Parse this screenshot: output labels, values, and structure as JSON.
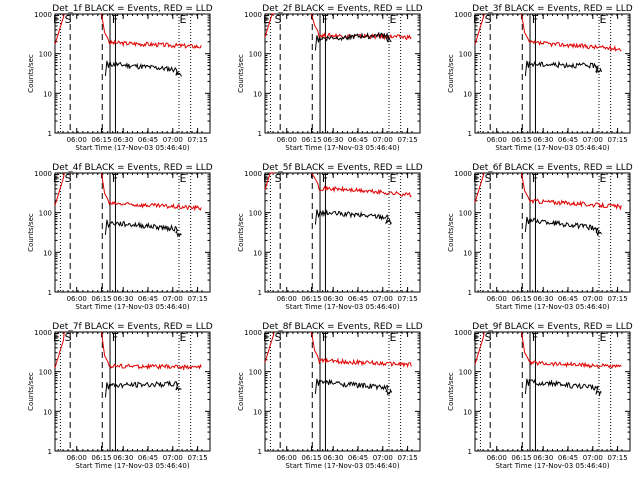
{
  "chart_data": [
    {
      "type": "line",
      "title": "Det_1f BLACK = Events, RED = LLD",
      "xlabel": "Start Time (17-Nov-03 05:46:40)",
      "ylabel": "Counts/sec",
      "x_ticks": [
        "06:00",
        "06:15",
        "06:30",
        "06:45",
        "07:00",
        "07:15"
      ],
      "y_ticks": [
        "1",
        "10",
        "100",
        "1000"
      ],
      "y_scale": "log",
      "ylim": [
        1,
        1000
      ],
      "markers": {
        "E1": "E",
        "S": "S",
        "F": "F",
        "E2": "E"
      },
      "red_level": 190,
      "black_level": 55,
      "red_end": 150,
      "black_end": 30
    },
    {
      "type": "line",
      "title": "Det_2f BLACK = Events, RED = LLD",
      "xlabel": "Start Time (17-Nov-03 05:46:40)",
      "ylabel": "Counts/sec",
      "x_ticks": [
        "06:00",
        "06:15",
        "06:30",
        "06:45",
        "07:00",
        "07:15"
      ],
      "y_ticks": [
        "1",
        "10",
        "100",
        "1000"
      ],
      "y_scale": "log",
      "ylim": [
        1,
        1000
      ],
      "markers": {
        "E1": "E",
        "S": "S",
        "F": "F",
        "E2": "E"
      },
      "red_level": 290,
      "black_level": 240,
      "red_end": 260,
      "black_end": 230
    },
    {
      "type": "line",
      "title": "Det_3f BLACK = Events, RED = LLD",
      "xlabel": "Start Time (17-Nov-03 05:46:40)",
      "ylabel": "Counts/sec",
      "x_ticks": [
        "06:00",
        "06:15",
        "06:30",
        "06:45",
        "07:00",
        "07:15"
      ],
      "y_ticks": [
        "1",
        "10",
        "100",
        "1000"
      ],
      "y_scale": "log",
      "ylim": [
        1,
        1000
      ],
      "markers": {
        "E1": "E",
        "S": "S",
        "F": "F",
        "E2": "E"
      },
      "red_level": 190,
      "black_level": 55,
      "red_end": 130,
      "black_end": 38
    },
    {
      "type": "line",
      "title": "Det_4f BLACK = Events, RED = LLD",
      "xlabel": "Start Time (17-Nov-03 05:46:40)",
      "ylabel": "Counts/sec",
      "x_ticks": [
        "06:00",
        "06:15",
        "06:30",
        "06:45",
        "07:00",
        "07:15"
      ],
      "y_ticks": [
        "1",
        "10",
        "100",
        "1000"
      ],
      "y_scale": "log",
      "ylim": [
        1,
        1000
      ],
      "markers": {
        "E1": "E",
        "S": "S",
        "F": "F",
        "E2": "E"
      },
      "red_level": 170,
      "black_level": 55,
      "red_end": 130,
      "black_end": 30
    },
    {
      "type": "line",
      "title": "Det_5f BLACK = Events, RED = LLD",
      "xlabel": "Start Time (17-Nov-03 05:46:40)",
      "ylabel": "Counts/sec",
      "x_ticks": [
        "06:00",
        "06:15",
        "06:30",
        "06:45",
        "07:00",
        "07:15"
      ],
      "y_ticks": [
        "1",
        "10",
        "100",
        "1000"
      ],
      "y_scale": "log",
      "ylim": [
        1,
        1000
      ],
      "markers": {
        "E1": "E",
        "S": "S",
        "F": "F",
        "E2": "E"
      },
      "red_level": 420,
      "black_level": 100,
      "red_end": 280,
      "black_end": 60
    },
    {
      "type": "line",
      "title": "Det_6f BLACK = Events, RED = LLD",
      "xlabel": "Start Time (17-Nov-03 05:46:40)",
      "ylabel": "Counts/sec",
      "x_ticks": [
        "06:00",
        "06:15",
        "06:30",
        "06:45",
        "07:00",
        "07:15"
      ],
      "y_ticks": [
        "1",
        "10",
        "100",
        "1000"
      ],
      "y_scale": "log",
      "ylim": [
        1,
        1000
      ],
      "markers": {
        "E1": "E",
        "S": "S",
        "F": "F",
        "E2": "E"
      },
      "red_level": 200,
      "black_level": 65,
      "red_end": 140,
      "black_end": 30
    },
    {
      "type": "line",
      "title": "Det_7f BLACK = Events, RED = LLD",
      "xlabel": "Start Time (17-Nov-03 05:46:40)",
      "ylabel": "Counts/sec",
      "x_ticks": [
        "06:00",
        "06:15",
        "06:30",
        "06:45",
        "07:00",
        "07:15"
      ],
      "y_ticks": [
        "1",
        "10",
        "100",
        "1000"
      ],
      "y_scale": "log",
      "ylim": [
        1,
        1000
      ],
      "markers": {
        "E1": "E",
        "S": "S",
        "F": "F",
        "E2": "E"
      },
      "red_level": 140,
      "black_level": 45,
      "red_end": 130,
      "black_end": 38
    },
    {
      "type": "line",
      "title": "Det_8f BLACK = Events, RED = LLD",
      "xlabel": "Start Time (17-Nov-03 05:46:40)",
      "ylabel": "Counts/sec",
      "x_ticks": [
        "06:00",
        "06:15",
        "06:30",
        "06:45",
        "07:00",
        "07:15"
      ],
      "y_ticks": [
        "1",
        "10",
        "100",
        "1000"
      ],
      "y_scale": "log",
      "ylim": [
        1,
        1000
      ],
      "markers": {
        "E1": "E",
        "S": "S",
        "F": "F",
        "E2": "E"
      },
      "red_level": 190,
      "black_level": 55,
      "red_end": 150,
      "black_end": 30
    },
    {
      "type": "line",
      "title": "Det_9f BLACK = Events, RED = LLD",
      "xlabel": "Start Time (17-Nov-03 05:46:40)",
      "ylabel": "Counts/sec",
      "x_ticks": [
        "06:00",
        "06:15",
        "06:30",
        "06:45",
        "07:00",
        "07:15"
      ],
      "y_ticks": [
        "1",
        "10",
        "100",
        "1000"
      ],
      "y_scale": "log",
      "ylim": [
        1,
        1000
      ],
      "markers": {
        "E1": "E",
        "S": "S",
        "F": "F",
        "E2": "E"
      },
      "red_level": 170,
      "black_level": 55,
      "red_end": 130,
      "black_end": 30
    }
  ],
  "colors": {
    "red_series": "#e00000",
    "black_series": "#000000",
    "axis": "#000000",
    "background": "#ffffff"
  }
}
